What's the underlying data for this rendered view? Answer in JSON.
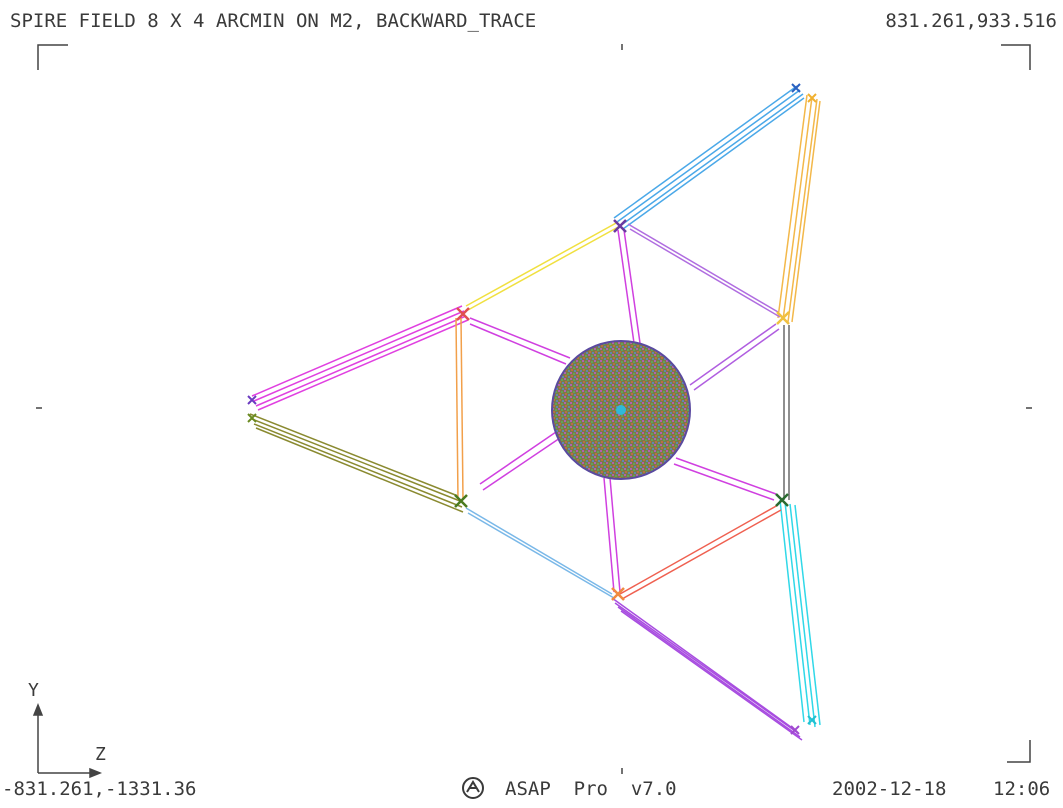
{
  "header": {
    "title": "SPIRE FIELD 8 X 4 ARCMIN ON M2, BACKWARD_TRACE",
    "top_right_coords": "831.261,933.516"
  },
  "footer": {
    "bottom_left_coords": "-831.261,-1331.36",
    "software": "ASAP  Pro  v7.0",
    "date": "2002-12-18",
    "time": "12:06"
  },
  "axes": {
    "vertical": "Y",
    "horizontal": "Z"
  },
  "colors": {
    "background": "#ffffff",
    "text": "#3a3a3a",
    "disk": "#7b7a4e"
  }
}
